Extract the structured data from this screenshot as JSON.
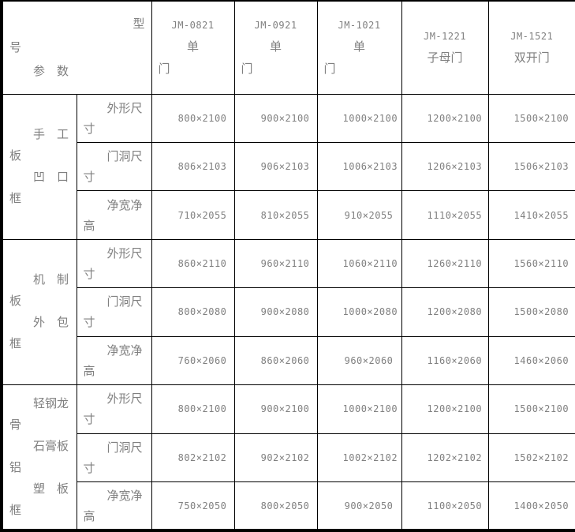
{
  "colors": {
    "text": "#808080",
    "border": "#000000",
    "background": "#ffffff"
  },
  "table": {
    "corner": {
      "line1": "型",
      "line2": "号",
      "line3": "　　参　数"
    },
    "columns": [
      {
        "model": "JM-0821",
        "type_lines": [
          "单",
          "门"
        ]
      },
      {
        "model": "JM-0921",
        "type_lines": [
          "单",
          "门"
        ]
      },
      {
        "model": "JM-1021",
        "type_lines": [
          "单",
          "门"
        ]
      },
      {
        "model": "JM-1221",
        "type_lines": [
          "子母门"
        ]
      },
      {
        "model": "JM-1521",
        "type_lines": [
          "双开门"
        ]
      }
    ],
    "groups": [
      {
        "label_lines": [
          "　　手　工",
          "板",
          "　　凹　口",
          "框"
        ],
        "rows": [
          {
            "param_lines": [
              "　　外形尺",
              "寸"
            ],
            "values": [
              "800×2100",
              "900×2100",
              "1000×2100",
              "1200×2100",
              "1500×2100"
            ]
          },
          {
            "param_lines": [
              "　　门洞尺",
              "寸"
            ],
            "values": [
              "806×2103",
              "906×2103",
              "1006×2103",
              "1206×2103",
              "1506×2103"
            ]
          },
          {
            "param_lines": [
              "　　净宽净",
              "高"
            ],
            "values": [
              "710×2055",
              "810×2055",
              "910×2055",
              "1110×2055",
              "1410×2055"
            ]
          }
        ]
      },
      {
        "label_lines": [
          "　　机　制",
          "板",
          "　　外　包",
          "框"
        ],
        "rows": [
          {
            "param_lines": [
              "　　外形尺",
              "寸"
            ],
            "values": [
              "860×2110",
              "960×2110",
              "1060×2110",
              "1260×2110",
              "1560×2110"
            ]
          },
          {
            "param_lines": [
              "　　门洞尺",
              "寸"
            ],
            "values": [
              "800×2080",
              "900×2080",
              "1000×2080",
              "1200×2080",
              "1500×2080"
            ]
          },
          {
            "param_lines": [
              "　　净宽净",
              "高"
            ],
            "values": [
              "760×2060",
              "860×2060",
              "960×2060",
              "1160×2060",
              "1460×2060"
            ]
          }
        ]
      },
      {
        "label_lines": [
          "　　轻钢龙",
          "骨",
          "　　石膏板",
          "铝",
          "　　塑　板",
          "框"
        ],
        "rows": [
          {
            "param_lines": [
              "　　外形尺",
              "寸"
            ],
            "values": [
              "800×2100",
              "900×2100",
              "1000×2100",
              "1200×2100",
              "1500×2100"
            ]
          },
          {
            "param_lines": [
              "　　门洞尺",
              "寸"
            ],
            "values": [
              "802×2102",
              "902×2102",
              "1002×2102",
              "1202×2102",
              "1502×2102"
            ]
          },
          {
            "param_lines": [
              "　　净宽净",
              "高"
            ],
            "values": [
              "750×2050",
              "800×2050",
              "900×2050",
              "1100×2050",
              "1400×2050"
            ]
          }
        ]
      }
    ]
  },
  "chart_data": {
    "type": "table",
    "title": "",
    "column_headers": [
      "JM-0821 单门",
      "JM-0921 单门",
      "JM-1021 单门",
      "JM-1221 子母门",
      "JM-1521 双开门"
    ],
    "row_groups": [
      {
        "group": "手工板凹口框",
        "rows": [
          {
            "param": "外形尺寸",
            "values": [
              "800×2100",
              "900×2100",
              "1000×2100",
              "1200×2100",
              "1500×2100"
            ]
          },
          {
            "param": "门洞尺寸",
            "values": [
              "806×2103",
              "906×2103",
              "1006×2103",
              "1206×2103",
              "1506×2103"
            ]
          },
          {
            "param": "净宽净高",
            "values": [
              "710×2055",
              "810×2055",
              "910×2055",
              "1110×2055",
              "1410×2055"
            ]
          }
        ]
      },
      {
        "group": "机制板外包框",
        "rows": [
          {
            "param": "外形尺寸",
            "values": [
              "860×2110",
              "960×2110",
              "1060×2110",
              "1260×2110",
              "1560×2110"
            ]
          },
          {
            "param": "门洞尺寸",
            "values": [
              "800×2080",
              "900×2080",
              "1000×2080",
              "1200×2080",
              "1500×2080"
            ]
          },
          {
            "param": "净宽净高",
            "values": [
              "760×2060",
              "860×2060",
              "960×2060",
              "1160×2060",
              "1460×2060"
            ]
          }
        ]
      },
      {
        "group": "轻钢龙骨石膏板铝塑板框",
        "rows": [
          {
            "param": "外形尺寸",
            "values": [
              "800×2100",
              "900×2100",
              "1000×2100",
              "1200×2100",
              "1500×2100"
            ]
          },
          {
            "param": "门洞尺寸",
            "values": [
              "802×2102",
              "902×2102",
              "1002×2102",
              "1202×2102",
              "1502×2102"
            ]
          },
          {
            "param": "净宽净高",
            "values": [
              "750×2050",
              "800×2050",
              "900×2050",
              "1100×2050",
              "1400×2050"
            ]
          }
        ]
      }
    ]
  }
}
